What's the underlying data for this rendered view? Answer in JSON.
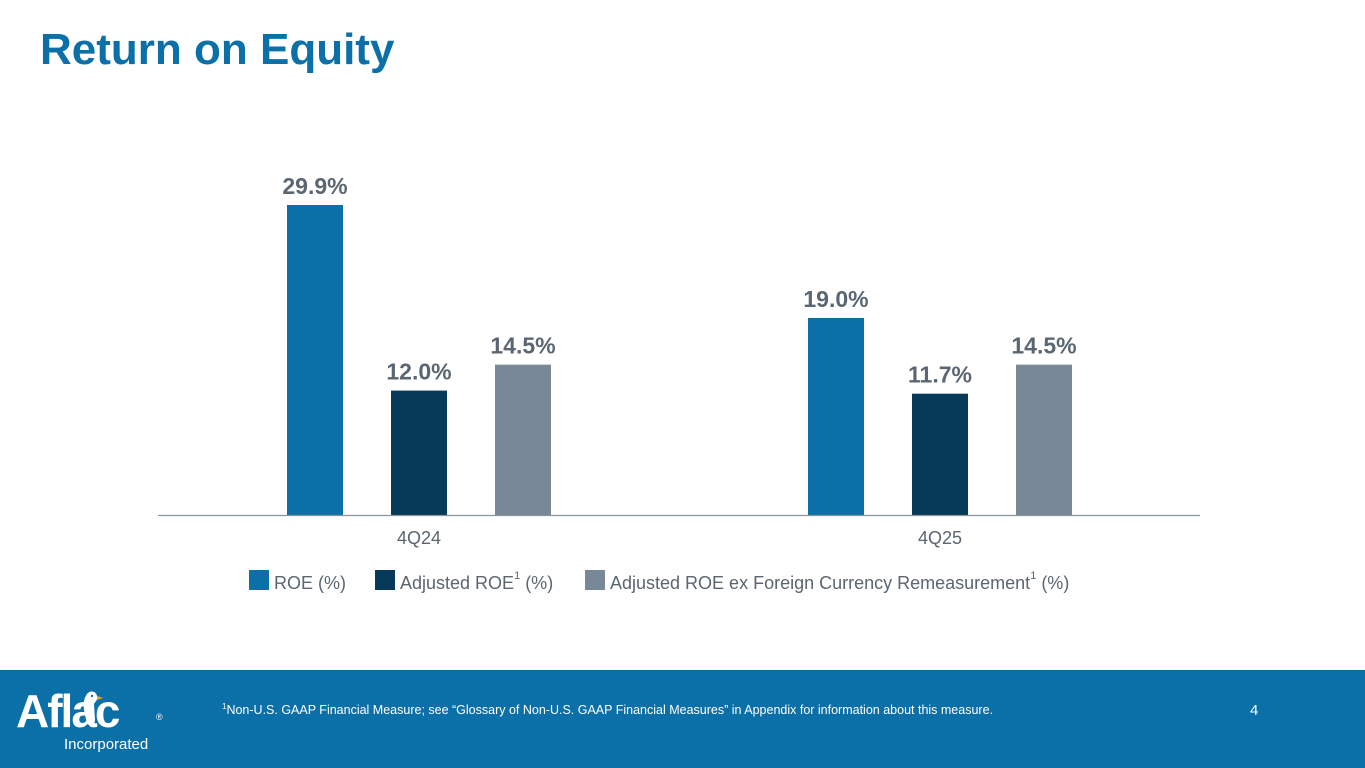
{
  "title": "Return on Equity",
  "chart_data": {
    "type": "bar",
    "categories": [
      "4Q24",
      "4Q25"
    ],
    "series": [
      {
        "name": "ROE (%)",
        "superscript": "",
        "values": [
          29.9,
          19.0
        ],
        "labels": [
          "29.9%",
          "19.0%"
        ],
        "color": "#0b6fa8"
      },
      {
        "name": "Adjusted ROE (%)",
        "superscript": "1",
        "values": [
          12.0,
          11.7
        ],
        "labels": [
          "12.0%",
          "11.7%"
        ],
        "color": "#073a59"
      },
      {
        "name": "Adjusted ROE ex Foreign Currency Remeasurement (%)",
        "superscript": "1",
        "values": [
          14.5,
          14.5
        ],
        "labels": [
          "14.5%",
          "14.5%"
        ],
        "color": "#788896"
      }
    ],
    "legend_parts": [
      {
        "pre": "ROE (%)",
        "sup": "",
        "post": ""
      },
      {
        "pre": "Adjusted ROE",
        "sup": "1",
        "post": " (%)"
      },
      {
        "pre": "Adjusted ROE ex Foreign Currency Remeasurement",
        "sup": "1",
        "post": " (%)"
      }
    ],
    "ylim": [
      0,
      30
    ],
    "grid": false,
    "legend_position": "bottom",
    "label_color": "#5a6672",
    "axis_color": "#8a949c"
  },
  "footer": {
    "logo_text": "Aflac",
    "logo_sub": "Incorporated",
    "logo_reg": "®",
    "footnote_sup": "1",
    "footnote": "Non-U.S. GAAP Financial Measure; see “Glossary of Non-U.S. GAAP Financial Measures” in Appendix for information about this measure.",
    "page_number": "4"
  }
}
